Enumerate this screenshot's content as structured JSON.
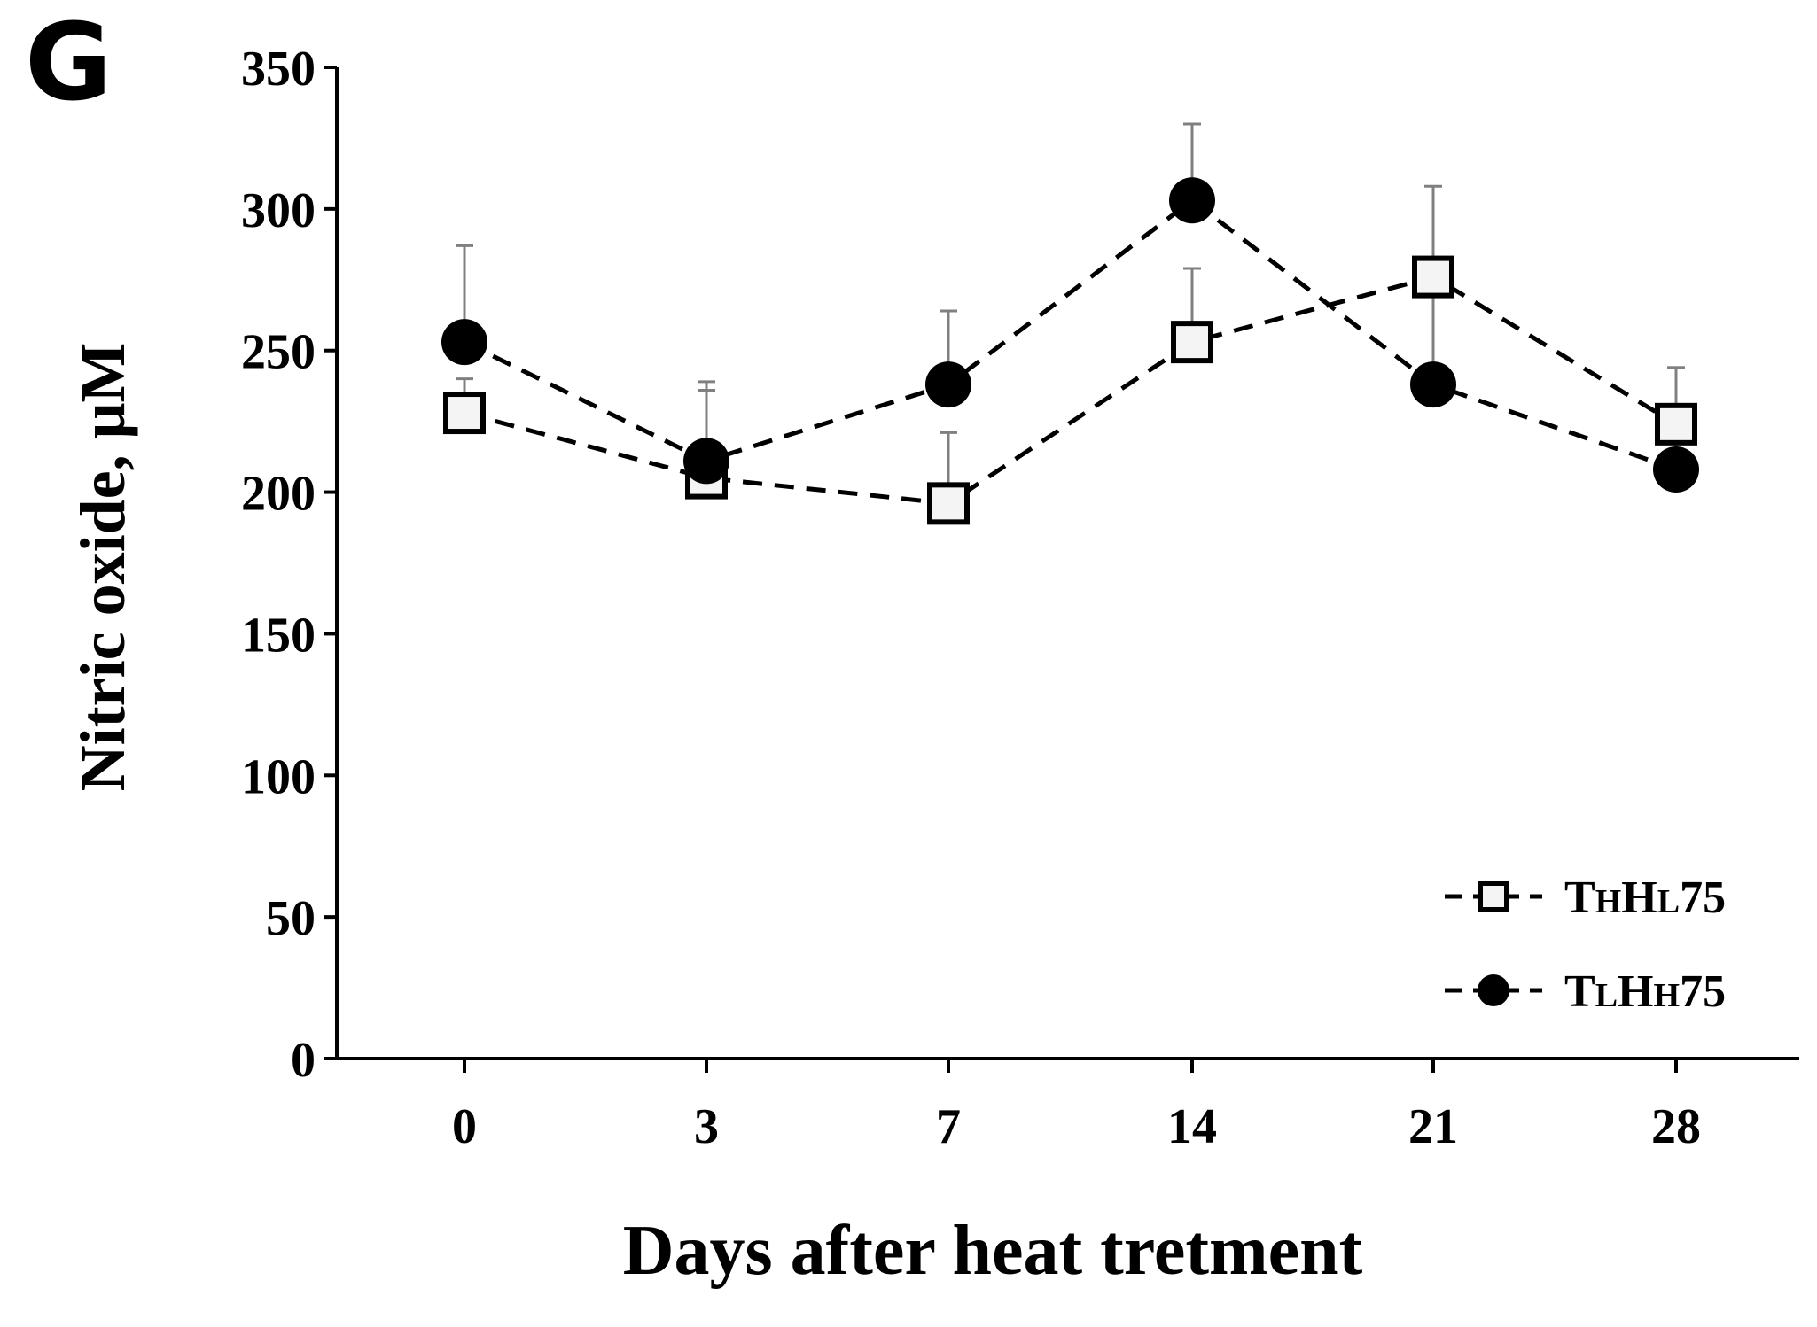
{
  "panel_label": "G",
  "chart_data": {
    "type": "line",
    "title": "",
    "xlabel": "Days after heat tretment",
    "ylabel": "Nitric oxide, μM",
    "categories": [
      "0",
      "3",
      "7",
      "14",
      "21",
      "28"
    ],
    "ylim": [
      0,
      350
    ],
    "yticks": [
      0,
      50,
      100,
      150,
      200,
      250,
      300,
      350
    ],
    "grid": false,
    "legend_position": "bottom-right",
    "series": [
      {
        "name": "THHL75",
        "name_parts": [
          {
            "text": "T",
            "small": false
          },
          {
            "text": "H",
            "small": true
          },
          {
            "text": "H",
            "small": false
          },
          {
            "text": "L",
            "small": true
          },
          {
            "text": "75",
            "small": false
          }
        ],
        "marker": "open-square",
        "line_style": "dashed",
        "values": [
          228,
          205,
          196,
          253,
          276,
          224
        ],
        "errors": [
          12,
          31,
          25,
          26,
          32,
          20
        ]
      },
      {
        "name": "TLHH75",
        "name_parts": [
          {
            "text": "T",
            "small": false
          },
          {
            "text": "L",
            "small": true
          },
          {
            "text": "H",
            "small": false
          },
          {
            "text": "H",
            "small": true
          },
          {
            "text": "75",
            "small": false
          }
        ],
        "marker": "filled-circle",
        "line_style": "dashed",
        "values": [
          253,
          211,
          238,
          303,
          238,
          208
        ],
        "errors": [
          34,
          28,
          26,
          27,
          31,
          36
        ]
      }
    ]
  },
  "colors": {
    "axis": "#000000",
    "line": "#000000",
    "error_bar": "#808080",
    "square_fill": "#f4f4f4"
  }
}
